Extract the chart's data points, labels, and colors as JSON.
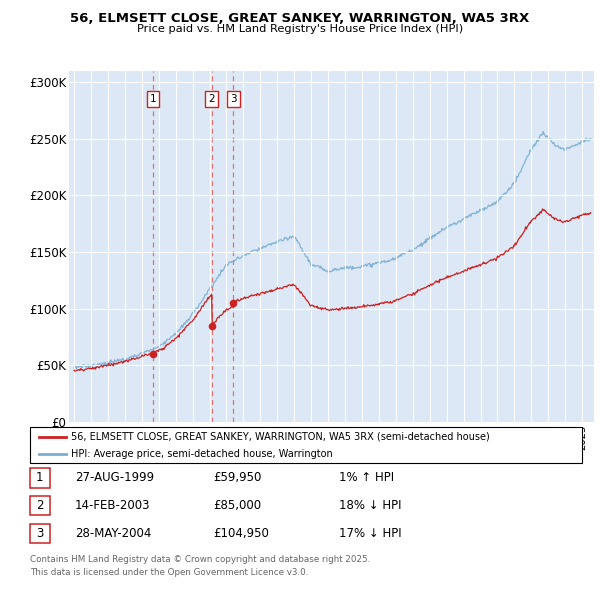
{
  "title": "56, ELMSETT CLOSE, GREAT SANKEY, WARRINGTON, WA5 3RX",
  "subtitle": "Price paid vs. HM Land Registry's House Price Index (HPI)",
  "legend_line1": "56, ELMSETT CLOSE, GREAT SANKEY, WARRINGTON, WA5 3RX (semi-detached house)",
  "legend_line2": "HPI: Average price, semi-detached house, Warrington",
  "transactions": [
    {
      "num": 1,
      "date": "27-AUG-1999",
      "price": 59950,
      "pct": "1% ↑ HPI"
    },
    {
      "num": 2,
      "date": "14-FEB-2003",
      "price": 85000,
      "pct": "18% ↓ HPI"
    },
    {
      "num": 3,
      "date": "28-MAY-2004",
      "price": 104950,
      "pct": "17% ↓ HPI"
    }
  ],
  "transaction_years": [
    1999.65,
    2003.12,
    2004.41
  ],
  "transaction_prices": [
    59950,
    85000,
    104950
  ],
  "footer_line1": "Contains HM Land Registry data © Crown copyright and database right 2025.",
  "footer_line2": "This data is licensed under the Open Government Licence v3.0.",
  "hpi_color": "#7aadd4",
  "price_color": "#cc2222",
  "ylim": [
    0,
    310000
  ],
  "yticks": [
    0,
    50000,
    100000,
    150000,
    200000,
    250000,
    300000
  ],
  "ytick_labels": [
    "£0",
    "£50K",
    "£100K",
    "£150K",
    "£200K",
    "£250K",
    "£300K"
  ],
  "background_color": "#dce8f5",
  "grid_color": "#ffffff",
  "xlim_min": 1994.7,
  "xlim_max": 2025.7
}
